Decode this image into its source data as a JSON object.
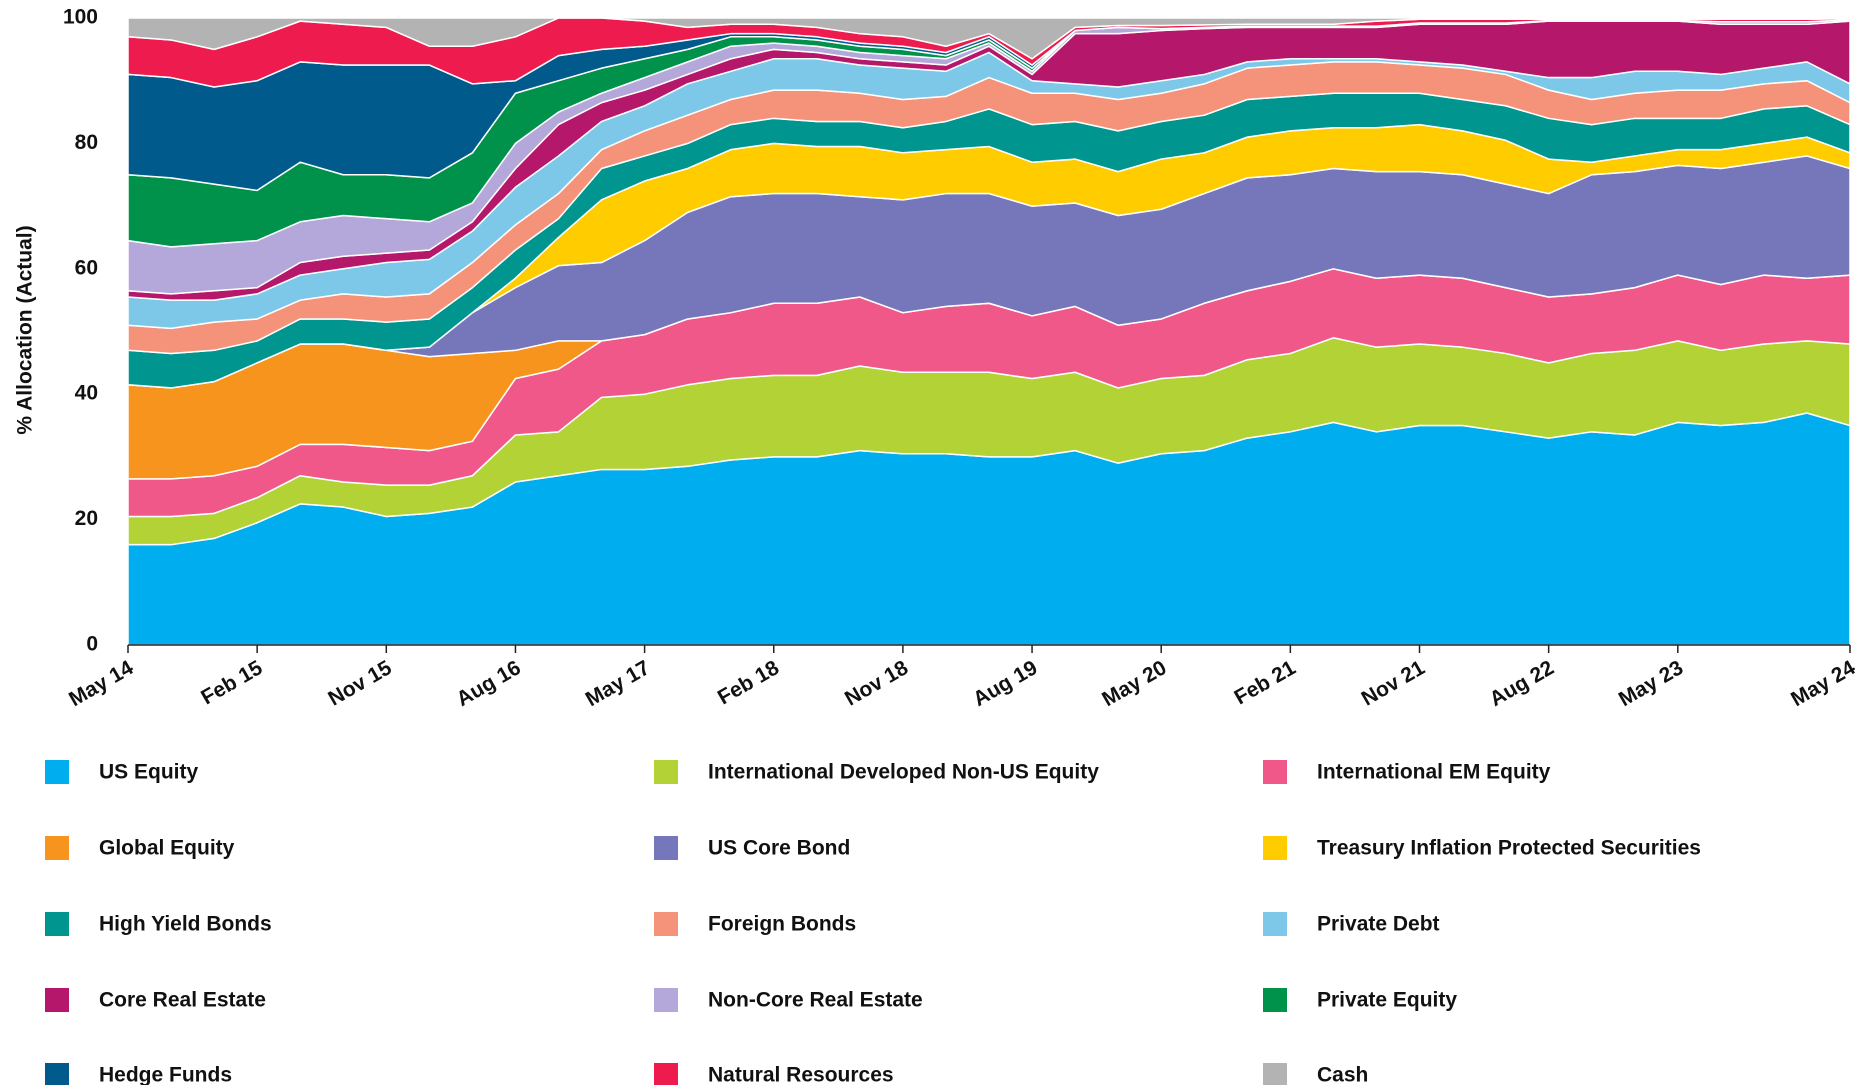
{
  "chart_data": {
    "type": "stacked_area",
    "y_label": "% Allocation (Actual)",
    "categories": [
      "May 14",
      null,
      null,
      "Feb 15",
      null,
      null,
      "Nov 15",
      null,
      null,
      "Aug 16",
      null,
      null,
      "May 17",
      null,
      null,
      "Feb 18",
      null,
      null,
      "Nov 18",
      null,
      null,
      "Aug 19",
      null,
      null,
      "May 20",
      null,
      null,
      "Feb 21",
      null,
      null,
      "Nov 21",
      null,
      null,
      "Aug 22",
      null,
      null,
      "May 23",
      null,
      null,
      null,
      "May 24"
    ],
    "ylim": [
      0,
      100
    ],
    "yticks": [
      0,
      20,
      40,
      60,
      80,
      100
    ],
    "grid": false,
    "legend": "bottom",
    "series": [
      {
        "name": "US Equity",
        "color": "#00aeef",
        "values": [
          16,
          16,
          17,
          19.5,
          22.5,
          22,
          20.5,
          21,
          22,
          26,
          27,
          28,
          28,
          28.5,
          29.5,
          30,
          30,
          31,
          30.5,
          30.5,
          30,
          30,
          31,
          29,
          30.5,
          31,
          33,
          34,
          35.5,
          34,
          35,
          35,
          34,
          33,
          34,
          33.5,
          35.5,
          35,
          35.5,
          37,
          35
        ]
      },
      {
        "name": "International Developed Non-US Equity",
        "color": "#b3d236",
        "values": [
          4.5,
          4.5,
          4,
          4,
          4.5,
          4,
          5,
          4.5,
          5,
          7.5,
          7,
          11.5,
          12,
          13,
          13,
          13,
          13,
          13.5,
          13,
          13,
          13.5,
          12.5,
          12.5,
          12,
          12,
          12,
          12.5,
          12.5,
          13.5,
          13.5,
          13,
          12.5,
          12.5,
          12,
          12.5,
          13.5,
          13,
          12,
          12.5,
          11.5,
          13
        ]
      },
      {
        "name": "International EM Equity",
        "color": "#f0588a",
        "values": [
          6,
          6,
          6,
          5,
          5,
          6,
          6,
          5.5,
          5.5,
          9,
          10,
          9,
          9.5,
          10.5,
          10.5,
          11.5,
          11.5,
          11,
          9.5,
          10.5,
          11,
          10,
          10.5,
          10,
          9.5,
          11.5,
          11,
          11.5,
          11,
          11,
          11,
          11,
          10.5,
          10.5,
          9.5,
          10,
          10.5,
          10.5,
          11,
          10,
          11
        ]
      },
      {
        "name": "Global Equity",
        "color": "#f7941d",
        "values": [
          15,
          14.5,
          15,
          16.5,
          16,
          16,
          15.5,
          15,
          14,
          4.5,
          4.5,
          0,
          0,
          0,
          0,
          0,
          0,
          0,
          0,
          0,
          0,
          0,
          0,
          0,
          0,
          0,
          0,
          0,
          0,
          0,
          0,
          0,
          0,
          0,
          0,
          0,
          0,
          0,
          0,
          0,
          0
        ]
      },
      {
        "name": "US Core Bond",
        "color": "#7577ba",
        "values": [
          0,
          0,
          0,
          0,
          0,
          0,
          0,
          1.5,
          6.5,
          10,
          12,
          12.5,
          15,
          17,
          18.5,
          17.5,
          17.5,
          16,
          18,
          18,
          17.5,
          17.5,
          16.5,
          17.5,
          17.5,
          17.5,
          18,
          17,
          16,
          17,
          16.5,
          16.5,
          16.5,
          16.5,
          19,
          18.5,
          17.5,
          18.5,
          18,
          19.5,
          17
        ]
      },
      {
        "name": "Treasury Inflation Protected Securities",
        "color": "#ffcc00",
        "values": [
          0,
          0,
          0,
          0,
          0,
          0,
          0,
          0,
          0,
          1.5,
          4.5,
          10,
          9.5,
          7,
          7.5,
          8,
          7.5,
          8,
          7.5,
          7,
          7.5,
          7,
          7,
          7,
          8,
          6.5,
          6.5,
          7,
          6.5,
          7,
          7.5,
          7,
          7,
          5.5,
          2,
          2.5,
          2.5,
          3,
          3,
          3,
          2.5
        ]
      },
      {
        "name": "High Yield Bonds",
        "color": "#00968f",
        "values": [
          5.5,
          5.5,
          5,
          3.5,
          4,
          4,
          4.5,
          4.5,
          4,
          4.5,
          3,
          5,
          4,
          4,
          4,
          4,
          4,
          4,
          4,
          4.5,
          6,
          6,
          6,
          6.5,
          6,
          6,
          6,
          5.5,
          5.5,
          5.5,
          5,
          5,
          5.5,
          6.5,
          6,
          6,
          5,
          5,
          5.5,
          5,
          4.5
        ]
      },
      {
        "name": "Foreign Bonds",
        "color": "#f4937a",
        "values": [
          4,
          4,
          4.5,
          3.5,
          3,
          4,
          4,
          4,
          4,
          4,
          4,
          3,
          4,
          4.5,
          4,
          4.5,
          5,
          4.5,
          4.5,
          4,
          5,
          5,
          4.5,
          5,
          4.5,
          5,
          5,
          5,
          5,
          5,
          4.5,
          5,
          5,
          4.5,
          4,
          4,
          4.5,
          4.5,
          4,
          4,
          3.5
        ]
      },
      {
        "name": "Private Debt",
        "color": "#7dc8e8",
        "values": [
          4.5,
          4.5,
          3.5,
          4,
          4,
          4,
          5.5,
          5.5,
          5,
          6,
          6,
          4.5,
          4,
          5,
          4.5,
          5,
          5,
          4.5,
          5,
          4,
          4,
          2,
          1.5,
          2,
          2,
          1.5,
          1,
          1,
          0.5,
          0.5,
          0.5,
          0.5,
          0.5,
          2,
          3.5,
          3.5,
          3,
          2.5,
          2.5,
          3,
          3
        ]
      },
      {
        "name": "Core Real Estate",
        "color": "#b5176b",
        "values": [
          1,
          1,
          1.5,
          1,
          2,
          2,
          1.5,
          1.5,
          1.5,
          3,
          5,
          3,
          2.5,
          1.5,
          2,
          1.5,
          1,
          1,
          1,
          1,
          1,
          1,
          8,
          8.5,
          8,
          7.3,
          5.5,
          5,
          5,
          5,
          6,
          6.5,
          7.5,
          9,
          9,
          8,
          8,
          8,
          7,
          6,
          10
        ]
      },
      {
        "name": "Non-Core Real Estate",
        "color": "#b3a8d9",
        "values": [
          8,
          7.5,
          7.5,
          7.5,
          6.5,
          6.5,
          5.5,
          4.5,
          3,
          4,
          2,
          1.5,
          2,
          2,
          2,
          1,
          1,
          1,
          1,
          1,
          0.5,
          0.5,
          0.5,
          1,
          0.3,
          0.2,
          0.2,
          0.2,
          0.2,
          0.2,
          0.2,
          0.2,
          0.2,
          0.1,
          0.1,
          0.1,
          0.1,
          0.4,
          0.4,
          0.4,
          0.2
        ]
      },
      {
        "name": "Private Equity",
        "color": "#00924a",
        "values": [
          10.5,
          11,
          9.5,
          8,
          9.5,
          6.5,
          7,
          7,
          8,
          8,
          5,
          4,
          3,
          2,
          1.5,
          1,
          1,
          1,
          1,
          0.5,
          0.5,
          0.5,
          0,
          0,
          0,
          0,
          0,
          0,
          0,
          0,
          0,
          0,
          0,
          0,
          0,
          0,
          0,
          0,
          0,
          0,
          0
        ]
      },
      {
        "name": "Hedge Funds",
        "color": "#005a8c",
        "values": [
          16,
          16,
          15.5,
          17.5,
          16,
          17.5,
          17.5,
          18,
          11,
          2,
          4,
          3,
          2,
          1.5,
          0.5,
          0.5,
          0.5,
          0.5,
          0.5,
          0.5,
          0.5,
          0.5,
          0,
          0,
          0,
          0,
          0,
          0,
          0,
          0,
          0,
          0,
          0,
          0,
          0,
          0,
          0,
          0,
          0,
          0,
          0
        ]
      },
      {
        "name": "Natural Resources",
        "color": "#ee1c4e",
        "values": [
          6,
          6,
          6,
          7,
          6.5,
          6.5,
          6,
          3,
          6,
          7,
          6,
          5,
          4,
          2,
          1.5,
          1.5,
          1.5,
          1.5,
          1.5,
          1,
          0.5,
          1,
          0.5,
          0.3,
          0.5,
          0.4,
          0.3,
          0.3,
          0.3,
          0.8,
          0.6,
          0.6,
          0.6,
          0.2,
          0.2,
          0.2,
          0.2,
          0.4,
          0.4,
          0.4,
          0.2
        ]
      },
      {
        "name": "Cash",
        "color": "#b3b3b3",
        "values": [
          3,
          3.5,
          5,
          3,
          0.5,
          1,
          1.5,
          4.5,
          4.5,
          3,
          0,
          0,
          0.5,
          1.5,
          1,
          1,
          1.5,
          2.5,
          3,
          4.5,
          2.5,
          6.5,
          1.5,
          1.2,
          1.2,
          1.1,
          1,
          1,
          1,
          0.5,
          0.2,
          0.2,
          0.2,
          0.2,
          0.2,
          0.2,
          0.2,
          0.2,
          0.2,
          0.2,
          0.1
        ]
      }
    ]
  }
}
